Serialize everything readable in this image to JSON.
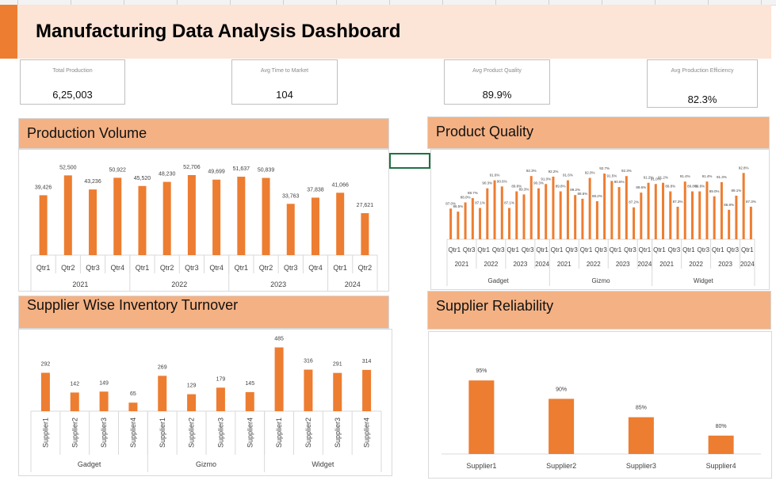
{
  "dashboard": {
    "title": "Manufacturing Data Analysis Dashboard"
  },
  "kpis": [
    {
      "label": "Total Production",
      "value": "6,25,003"
    },
    {
      "label": "Avg Time to Market",
      "value": "104"
    },
    {
      "label": "Avg Product Quality",
      "value": "89.9%"
    },
    {
      "label": "Avg Production Efficiency",
      "value": "82.3%"
    }
  ],
  "panels": {
    "production_volume": "Production Volume",
    "product_quality": "Product Quality",
    "supplier_inventory": "Supplier Wise Inventory Turnover",
    "supplier_reliability": "Supplier Reliability"
  },
  "colors": {
    "bar": "#ED7D31",
    "header": "#F4B183",
    "banner": "#FCE4D6",
    "accent": "#ED7D31"
  },
  "chart_data": [
    {
      "id": "production_volume",
      "type": "bar",
      "title": "Production Volume",
      "groups": [
        {
          "label": "2021",
          "categories": [
            "Qtr1",
            "Qtr2",
            "Qtr3",
            "Qtr4"
          ],
          "values": [
            39426,
            52500,
            43236,
            50922
          ],
          "labels": [
            "39,426",
            "52,500",
            "43,236",
            "50,922"
          ]
        },
        {
          "label": "2022",
          "categories": [
            "Qtr1",
            "Qtr2",
            "Qtr3",
            "Qtr4"
          ],
          "values": [
            45520,
            48230,
            52706,
            49699
          ],
          "labels": [
            "45,520",
            "48,230",
            "52,706",
            "49,699"
          ]
        },
        {
          "label": "2023",
          "categories": [
            "Qtr1",
            "Qtr2",
            "Qtr3",
            "Qtr4"
          ],
          "values": [
            51637,
            50839,
            33763,
            37838
          ],
          "labels": [
            "51,637",
            "50,839",
            "33,763",
            "37,838"
          ]
        },
        {
          "label": "2024",
          "categories": [
            "Qtr1",
            "Qtr2"
          ],
          "values": [
            41066,
            27621
          ],
          "labels": [
            "41,066",
            "27,621"
          ]
        }
      ],
      "ylim": [
        0,
        60000
      ]
    },
    {
      "id": "product_quality",
      "type": "bar",
      "title": "Product Quality",
      "products": [
        {
          "label": "Gadget",
          "years": [
            {
              "label": "2021",
              "ticks": [
                "Qtr1",
                "Qtr3"
              ],
              "values": [
                87.0,
                86.5,
                88.0,
                88.7
              ]
            },
            {
              "label": "2022",
              "ticks": [
                "Qtr1",
                "Qtr3"
              ],
              "values": [
                87.1,
                90.3,
                91.6,
                90.6
              ]
            },
            {
              "label": "2023",
              "ticks": [
                "Qtr1",
                "Qtr3"
              ],
              "values": [
                87.1,
                89.8,
                89.3,
                92.3
              ]
            },
            {
              "label": "2024",
              "ticks": [
                "Qtr1"
              ],
              "values": [
                90.3,
                91.0
              ]
            }
          ]
        },
        {
          "label": "Gizmo",
          "years": [
            {
              "label": "2021",
              "ticks": [
                "Qtr1",
                "Qtr3"
              ],
              "values": [
                92.2,
                89.8,
                91.6,
                89.2
              ]
            },
            {
              "label": "2022",
              "ticks": [
                "Qtr1",
                "Qtr3"
              ],
              "values": [
                88.6,
                92.0,
                88.2,
                92.7
              ]
            },
            {
              "label": "2023",
              "ticks": [
                "Qtr1",
                "Qtr3"
              ],
              "values": [
                91.5,
                90.5,
                92.3,
                87.2
              ]
            },
            {
              "label": "2024",
              "ticks": [
                "Qtr1"
              ],
              "values": [
                89.6,
                91.2
              ]
            }
          ]
        },
        {
          "label": "Widget",
          "years": [
            {
              "label": "2021",
              "ticks": [
                "Qtr1",
                "Qtr3"
              ],
              "values": [
                91.0,
                91.2,
                89.8,
                87.3
              ]
            },
            {
              "label": "2022",
              "ticks": [
                "Qtr1",
                "Qtr3"
              ],
              "values": [
                91.4,
                89.8,
                89.8,
                91.4
              ]
            },
            {
              "label": "2023",
              "ticks": [
                "Qtr1",
                "Qtr3"
              ],
              "values": [
                89.0,
                91.3,
                86.8,
                89.1
              ]
            },
            {
              "label": "2024",
              "ticks": [
                "Qtr1"
              ],
              "values": [
                92.8,
                87.3
              ]
            }
          ]
        }
      ],
      "ylim": [
        82,
        94
      ]
    },
    {
      "id": "supplier_inventory",
      "type": "bar",
      "title": "Supplier Wise Inventory Turnover",
      "groups": [
        {
          "label": "Gadget",
          "categories": [
            "Supplier1",
            "Supplier2",
            "Supplier3",
            "Supplier4"
          ],
          "values": [
            292,
            142,
            149,
            65
          ]
        },
        {
          "label": "Gizmo",
          "categories": [
            "Supplier1",
            "Supplier2",
            "Supplier3",
            "Supplier4"
          ],
          "values": [
            269,
            129,
            179,
            145
          ]
        },
        {
          "label": "Widget",
          "categories": [
            "Supplier1",
            "Supplier2",
            "Supplier3",
            "Supplier4"
          ],
          "values": [
            485,
            316,
            291,
            314
          ]
        }
      ],
      "ylim": [
        0,
        500
      ]
    },
    {
      "id": "supplier_reliability",
      "type": "bar",
      "title": "Supplier Reliability",
      "categories": [
        "Supplier1",
        "Supplier2",
        "Supplier3",
        "Supplier4"
      ],
      "values": [
        95,
        90,
        85,
        80
      ],
      "labels": [
        "95%",
        "90%",
        "85%",
        "80%"
      ],
      "ylim": [
        75,
        100
      ]
    }
  ]
}
